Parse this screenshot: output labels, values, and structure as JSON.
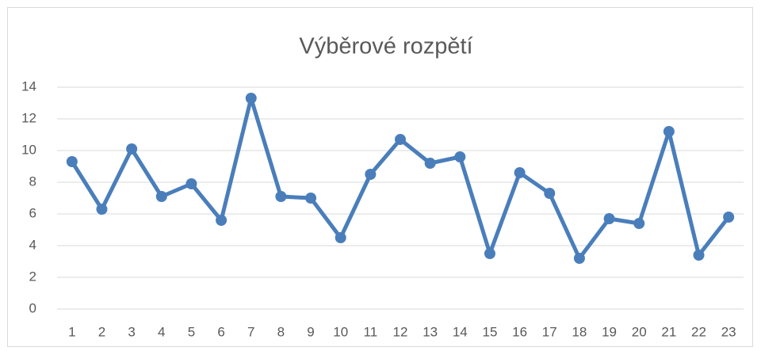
{
  "chart_data": {
    "type": "line",
    "title": "Výběrové rozpětí",
    "categories": [
      "1",
      "2",
      "3",
      "4",
      "5",
      "6",
      "7",
      "8",
      "9",
      "10",
      "11",
      "12",
      "13",
      "14",
      "15",
      "16",
      "17",
      "18",
      "19",
      "20",
      "21",
      "22",
      "23"
    ],
    "values": [
      9.3,
      6.3,
      10.1,
      7.1,
      7.9,
      5.6,
      13.3,
      7.1,
      7.0,
      4.5,
      8.5,
      10.7,
      9.2,
      9.6,
      3.5,
      8.6,
      7.3,
      3.2,
      5.7,
      5.4,
      11.2,
      3.4,
      5.8
    ],
    "color": "#4a7ebb",
    "ylim": [
      0,
      14
    ],
    "yticks": [
      0,
      2,
      4,
      6,
      8,
      10,
      12,
      14
    ],
    "grid": true
  }
}
